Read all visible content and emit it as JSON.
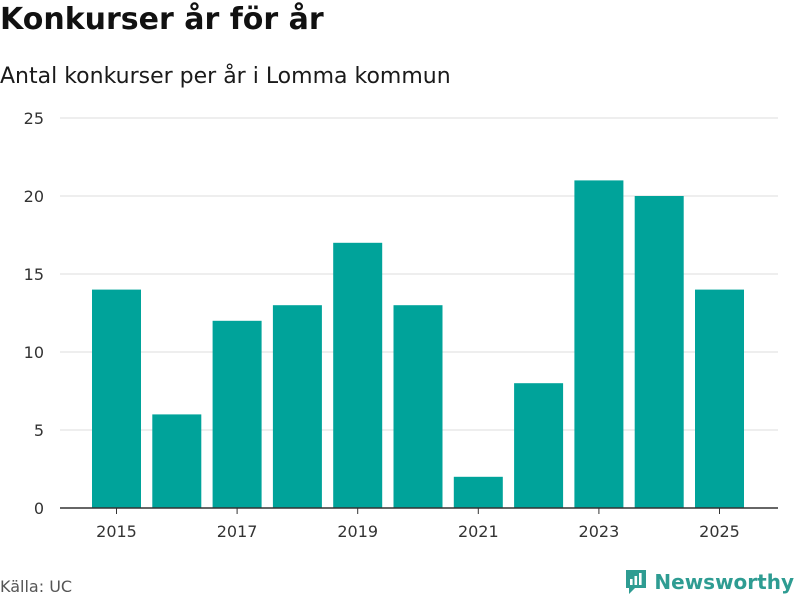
{
  "header": {
    "title": "Konkurser år för år",
    "subtitle": "Antal konkurser per år i Lomma kommun"
  },
  "footer": {
    "source": "Källa: UC",
    "brand": "Newsworthy",
    "brand_icon": "newsworthy-logo-icon"
  },
  "colors": {
    "bar": "#00a39a",
    "grid": "#dddddd",
    "axis": "#333333",
    "brand": "#2e9c92"
  },
  "chart_data": {
    "type": "bar",
    "title": "Konkurser år för år",
    "subtitle": "Antal konkurser per år i Lomma kommun",
    "categories": [
      "2015",
      "2016",
      "2017",
      "2018",
      "2019",
      "2020",
      "2021",
      "2022",
      "2023",
      "2024",
      "2025"
    ],
    "values": [
      14,
      6,
      12,
      13,
      17,
      13,
      2,
      8,
      21,
      20,
      14
    ],
    "x_tick_labels": [
      "2015",
      "2017",
      "2019",
      "2021",
      "2023",
      "2025"
    ],
    "y_ticks": [
      0,
      5,
      10,
      15,
      20,
      25
    ],
    "ylim": [
      0,
      25
    ],
    "xlabel": "",
    "ylabel": "",
    "grid": true,
    "legend": "none"
  }
}
